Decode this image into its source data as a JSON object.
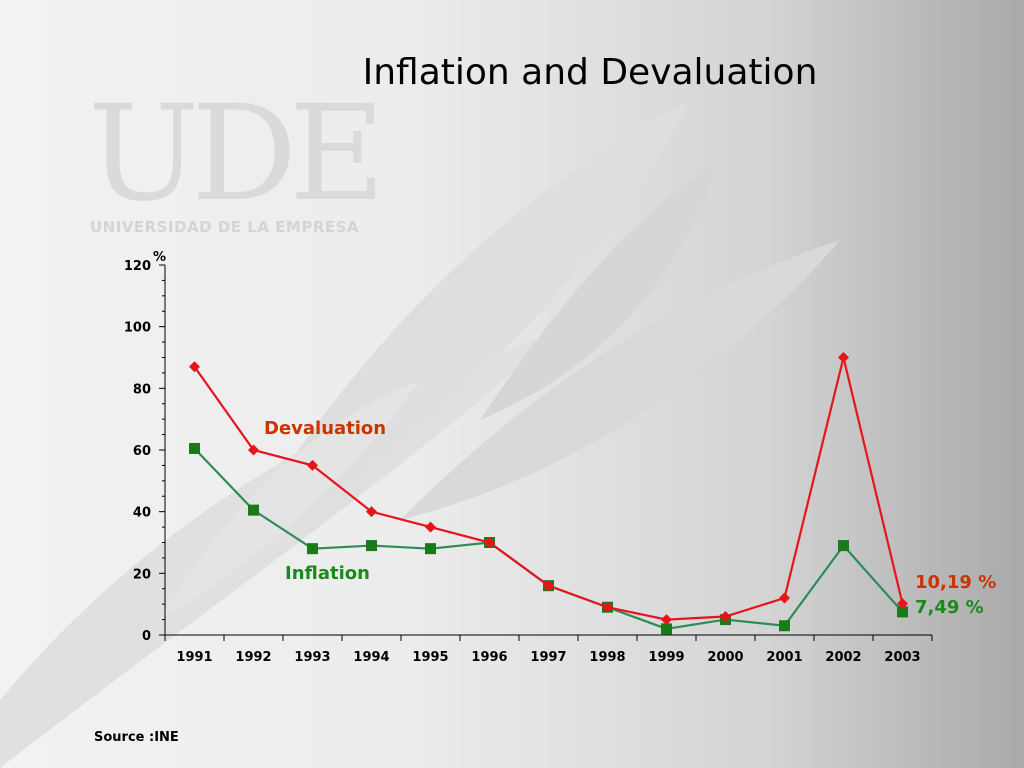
{
  "slide": {
    "title": "Inflation and Devaluation",
    "logo_text": "UDE",
    "logo_subtitle": "UNIVERSIDAD DE LA EMPRESA",
    "source": "Source :INE"
  },
  "colors": {
    "devaluation": "#e8141c",
    "devaluation_label": "#cc3300",
    "inflation": "#2e8b57",
    "inflation_marker": "#1a7a1a",
    "inflation_label": "#1a8a1a"
  },
  "chart_data": {
    "type": "line",
    "title": "Inflation and Devaluation",
    "ylabel": "%",
    "xlabel": "",
    "ylim": [
      0,
      120
    ],
    "yticks": [
      0,
      20,
      40,
      60,
      80,
      100,
      120
    ],
    "grid": false,
    "categories": [
      "1991",
      "1992",
      "1993",
      "1994",
      "1995",
      "1996",
      "1997",
      "1998",
      "1999",
      "2000",
      "2001",
      "2002",
      "2003"
    ],
    "series": [
      {
        "name": "Devaluation",
        "marker": "diamond",
        "values": [
          87,
          60,
          55,
          40,
          35,
          30,
          16,
          9,
          5,
          6,
          12,
          90,
          10.19
        ],
        "end_label": "10,19 %"
      },
      {
        "name": "Inflation",
        "marker": "square",
        "values": [
          60.5,
          40.5,
          28,
          29,
          28,
          30,
          16,
          9,
          2,
          5,
          3,
          29,
          7.49
        ],
        "end_label": "7,49 %"
      }
    ]
  }
}
